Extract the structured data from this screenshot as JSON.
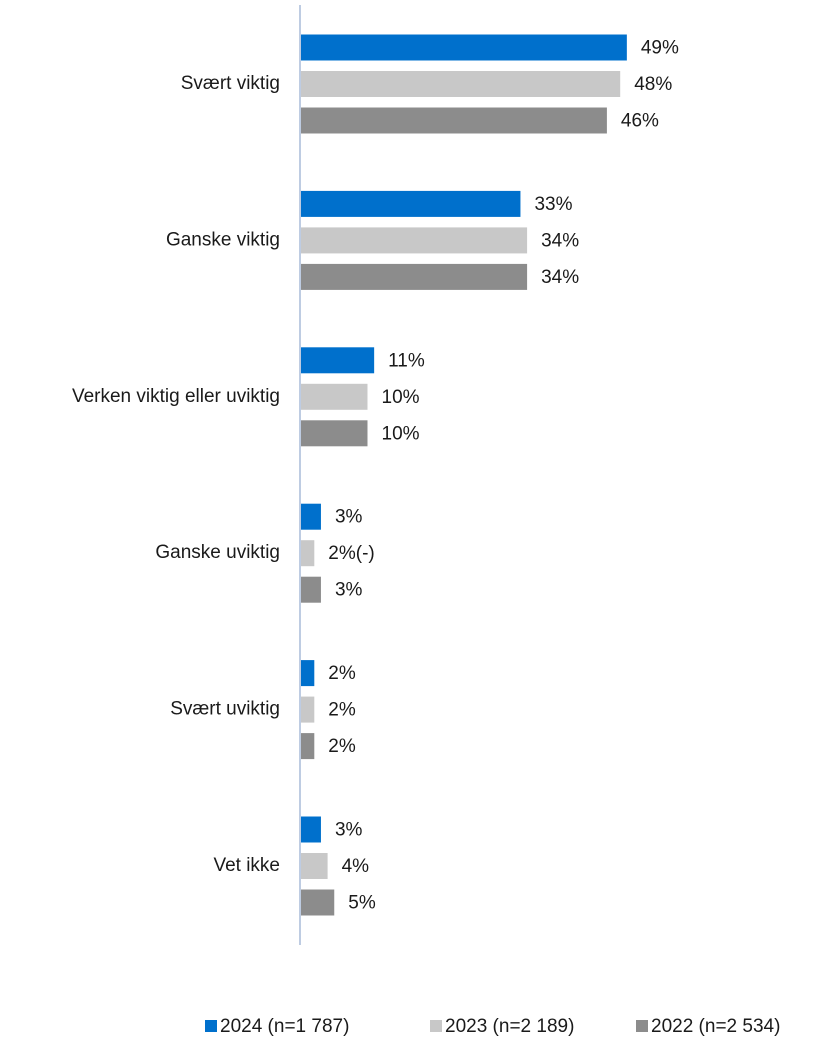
{
  "chart_data": {
    "type": "bar",
    "orientation": "horizontal",
    "categories": [
      "Svært viktig",
      "Ganske viktig",
      "Verken viktig eller uviktig",
      "Ganske uviktig",
      "Svært uviktig",
      "Vet ikke"
    ],
    "series": [
      {
        "name": "2024 (n=1 787)",
        "color": "#0070cc",
        "values": [
          49,
          33,
          11,
          3,
          2,
          3
        ],
        "value_labels": [
          "49%",
          "33%",
          "11%",
          "3%",
          "2%",
          "3%"
        ]
      },
      {
        "name": "2023 (n=2 189)",
        "color": "#c8c8c8",
        "values": [
          48,
          34,
          10,
          2,
          2,
          4
        ],
        "value_labels": [
          "48%",
          "34%",
          "10%",
          "2%(-)",
          "2%",
          "4%"
        ]
      },
      {
        "name": "2022 (n=2 534)",
        "color": "#8c8c8c",
        "values": [
          46,
          34,
          10,
          3,
          2,
          5
        ],
        "value_labels": [
          "46%",
          "34%",
          "10%",
          "3%",
          "2%",
          "5%"
        ]
      }
    ],
    "legend": "bottom"
  }
}
